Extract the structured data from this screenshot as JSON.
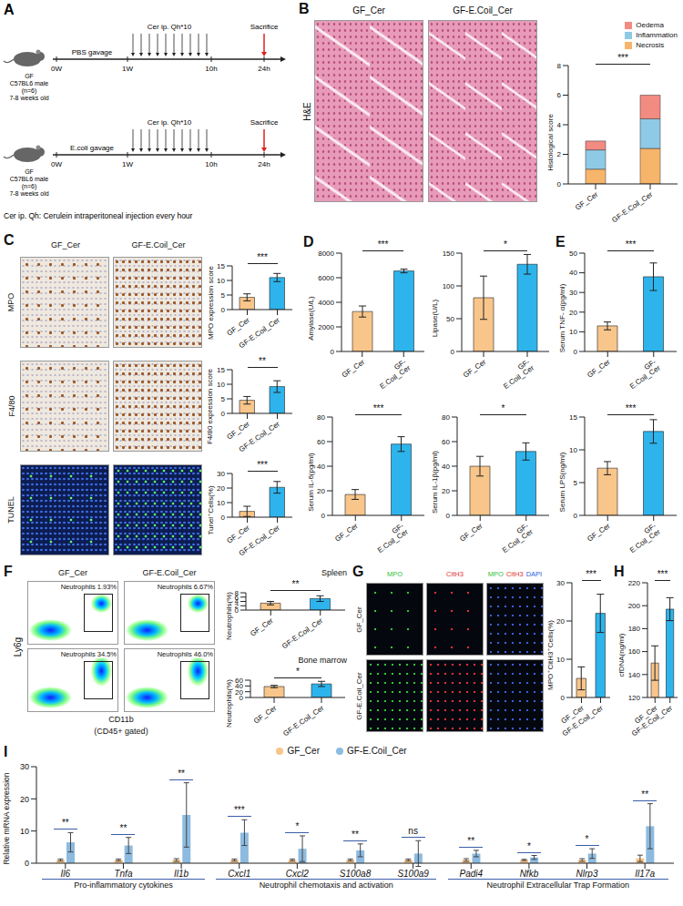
{
  "chart_data": [
    {
      "type": "bar",
      "panel": "B",
      "y_label": "Histological score",
      "categories": [
        "GF_Cer",
        "GF-E.Coil_Cer"
      ],
      "stacked": true,
      "legend": "top-right",
      "series": [
        {
          "name": "Oedema",
          "color": "#f28b82",
          "values": [
            0.6,
            1.6
          ]
        },
        {
          "name": "Inflammation",
          "color": "#8ecae6",
          "values": [
            1.3,
            2.0
          ]
        },
        {
          "name": "Necrosis",
          "color": "#f7b56b",
          "values": [
            1.0,
            2.4
          ]
        }
      ],
      "ylim": [
        0,
        8
      ],
      "yticks": [
        0,
        2,
        4,
        6,
        8
      ],
      "significance": "***"
    },
    {
      "type": "bar",
      "y_label": "MPO expression score",
      "categories": [
        "GF_Cer",
        "GF-E.Coil_Cer"
      ],
      "values": [
        4.2,
        11.0
      ],
      "errors": [
        1.2,
        1.4
      ],
      "colors": [
        "#f8c58a",
        "#2db4ec"
      ],
      "ylim": [
        0,
        15
      ],
      "yticks": [
        0,
        5,
        10,
        15
      ],
      "significance": "***"
    },
    {
      "type": "bar",
      "y_label": "F4/80 expression score",
      "categories": [
        "GF_Cer",
        "GF-E.Coil_Cer"
      ],
      "values": [
        4.5,
        9.2
      ],
      "errors": [
        1.3,
        2.0
      ],
      "colors": [
        "#f8c58a",
        "#2db4ec"
      ],
      "ylim": [
        0,
        15
      ],
      "yticks": [
        0,
        5,
        10,
        15
      ],
      "significance": "**"
    },
    {
      "type": "bar",
      "y_label": "Tunel⁺Cells(%)",
      "categories": [
        "GF_Cer",
        "GF-E.Coil_Cer"
      ],
      "values": [
        4.0,
        20.5
      ],
      "errors": [
        3.5,
        4.0
      ],
      "colors": [
        "#f8c58a",
        "#2db4ec"
      ],
      "ylim": [
        0,
        30
      ],
      "yticks": [
        0,
        10,
        20,
        30
      ],
      "significance": "***"
    },
    {
      "type": "bar",
      "panel": "D",
      "y_label": "Amylase(U/L)",
      "categories": [
        "GF_Cer",
        "GF- E.Coil_Cer"
      ],
      "values": [
        3250,
        6550
      ],
      "errors": [
        450,
        150
      ],
      "colors": [
        "#f8c58a",
        "#2db4ec"
      ],
      "ylim": [
        0,
        8000
      ],
      "yticks": [
        0,
        2000,
        4000,
        6000,
        8000
      ],
      "significance": "***"
    },
    {
      "type": "bar",
      "y_label": "Lipase(U/L)",
      "categories": [
        "GF_Cer",
        "GF- E.Coil_Cer"
      ],
      "values": [
        82,
        133
      ],
      "errors": [
        33,
        15
      ],
      "colors": [
        "#f8c58a",
        "#2db4ec"
      ],
      "ylim": [
        0,
        150
      ],
      "yticks": [
        0,
        50,
        100,
        150
      ],
      "significance": "*"
    },
    {
      "type": "bar",
      "panel": "E",
      "y_label": "Serum TNF- α(pg/ml)",
      "categories": [
        "GF_Cer",
        "GF- E.Coil_Cer"
      ],
      "values": [
        13,
        38
      ],
      "errors": [
        2,
        7
      ],
      "colors": [
        "#f8c58a",
        "#2db4ec"
      ],
      "ylim": [
        0,
        50
      ],
      "yticks": [
        0,
        10,
        20,
        30,
        40,
        50
      ],
      "significance": "***"
    },
    {
      "type": "bar",
      "y_label": "Serum IL-6(pg/ml)",
      "categories": [
        "GF_Cer",
        "GF- E.Coil_Cer"
      ],
      "values": [
        17,
        58
      ],
      "errors": [
        4,
        6
      ],
      "colors": [
        "#f8c58a",
        "#2db4ec"
      ],
      "ylim": [
        0,
        80
      ],
      "yticks": [
        0,
        20,
        40,
        60,
        80
      ],
      "significance": "***"
    },
    {
      "type": "bar",
      "y_label": "Serum IL-1β(pg/ml)",
      "categories": [
        "GF_Cer",
        "GF- E.Coil_Cer"
      ],
      "values": [
        40,
        52
      ],
      "errors": [
        8,
        7
      ],
      "colors": [
        "#f8c58a",
        "#2db4ec"
      ],
      "ylim": [
        0,
        80
      ],
      "yticks": [
        0,
        20,
        40,
        60,
        80
      ],
      "significance": "*"
    },
    {
      "type": "bar",
      "y_label": "Serum LPS(ng/ml)",
      "categories": [
        "GF_Cer",
        "GF- E.Coil_Cer"
      ],
      "values": [
        7.2,
        12.8
      ],
      "errors": [
        1.0,
        1.8
      ],
      "colors": [
        "#f8c58a",
        "#2db4ec"
      ],
      "ylim": [
        0,
        15
      ],
      "yticks": [
        0,
        5,
        10,
        15
      ],
      "significance": "***"
    },
    {
      "type": "bar",
      "title": "Spleen",
      "y_label": "Neutrophils(%)",
      "categories": [
        "GF_Cer",
        "GF-E.Coil_Cer"
      ],
      "values": [
        3.2,
        5.3
      ],
      "errors": [
        0.8,
        1.3
      ],
      "colors": [
        "#f8c58a",
        "#2db4ec"
      ],
      "ylim": [
        0,
        8
      ],
      "yticks": [
        0,
        2,
        4,
        6,
        8
      ],
      "significance": "**"
    },
    {
      "type": "bar",
      "title": "Bone marrow",
      "y_label": "Neutrophils(%)",
      "categories": [
        "GF_Cer",
        "GF-E.Coil_Cer"
      ],
      "values": [
        38,
        47
      ],
      "errors": [
        4,
        9
      ],
      "colors": [
        "#f8c58a",
        "#2db4ec"
      ],
      "ylim": [
        0,
        60
      ],
      "yticks": [
        0,
        20,
        40,
        60
      ],
      "significance": "*"
    },
    {
      "type": "bar",
      "y_label": "MPO⁺CitH3⁺Cells(%)",
      "categories": [
        "GF_Cer",
        "GF-E.Coil_Cer"
      ],
      "values": [
        5,
        22
      ],
      "errors": [
        3,
        5
      ],
      "colors": [
        "#f8c58a",
        "#2db4ec"
      ],
      "ylim": [
        0,
        30
      ],
      "yticks": [
        0,
        10,
        20,
        30
      ],
      "significance": "***"
    },
    {
      "type": "bar",
      "panel": "H",
      "y_label": "cfDNA(ng/ml)",
      "categories": [
        "GF_Cer",
        "GF-E.Coil_Cer"
      ],
      "values": [
        150,
        197
      ],
      "errors": [
        15,
        10
      ],
      "colors": [
        "#f8c58a",
        "#2db4ec"
      ],
      "ylim": [
        120,
        220
      ],
      "yticks": [
        120,
        140,
        160,
        180,
        200,
        220
      ],
      "significance": "***"
    },
    {
      "type": "bar",
      "panel": "I",
      "y_label": "Relative mRNA expression",
      "legend": "top",
      "categories": [
        "Il6",
        "Tnfa",
        "Il1b",
        "Cxcl1",
        "Cxcl2",
        "S100a8",
        "S100a9",
        "Padi4",
        "Nfkb",
        "Nlrp3",
        "Il17a"
      ],
      "series": [
        {
          "name": "GF_Cer",
          "color": "#f8c58a",
          "values": [
            1,
            1,
            1,
            1,
            1,
            1,
            1,
            1,
            1,
            1,
            1.5
          ],
          "errors": [
            0.3,
            0.3,
            0.4,
            0.3,
            0.3,
            0.3,
            0.3,
            0.4,
            0.2,
            0.4,
            1.0
          ]
        },
        {
          "name": "GF-E.Coil_Cer",
          "color": "#8dbbe0",
          "values": [
            6.5,
            5.5,
            15,
            9.5,
            4.5,
            4.0,
            3.0,
            3.0,
            1.8,
            3.0,
            11.5
          ],
          "errors": [
            3,
            2.5,
            10,
            4,
            4,
            2,
            4,
            1,
            0.6,
            1.5,
            7
          ]
        }
      ],
      "significance": [
        "**",
        "**",
        "**",
        "***",
        "*",
        "**",
        "ns",
        "**",
        "*",
        "*",
        "**"
      ],
      "groups": [
        {
          "label": "Pro-inflammatory cytokines",
          "members": [
            "Il6",
            "Tnfa",
            "Il1b"
          ]
        },
        {
          "label": "Neutrophil chemotaxis and activation",
          "members": [
            "Cxcl1",
            "Cxcl2",
            "S100a8",
            "S100a9"
          ]
        },
        {
          "label": "Neutrophil Extracellular Trap Formation",
          "members": [
            "Padi4",
            "Nfkb",
            "Nlrp3",
            "Il17a"
          ]
        }
      ],
      "ylim": [
        0,
        30
      ],
      "yticks": [
        0,
        10,
        20,
        30
      ]
    }
  ],
  "diagram": {
    "panel": "A",
    "mouse_label": [
      "GF",
      "C57BL6 male",
      "(n=6)",
      "7-8 weeks old"
    ],
    "gavages": [
      "PBS gavage",
      "E.coli gavage"
    ],
    "time_points": [
      "0W",
      "1W",
      "10h",
      "24h"
    ],
    "injection": "Cer ip. Qh*10",
    "end": "Sacrifice",
    "note": "Cer ip. Qh: Cerulein intraperitoneal injection every hour"
  },
  "images": {
    "B": {
      "panel": "B",
      "row_labels": [
        "H&E"
      ],
      "col_labels": [
        "GF_Cer",
        "GF-E.Coil_Cer"
      ]
    },
    "C": {
      "panel": "C",
      "row_labels": [
        "MPO",
        "F4/80",
        "TUNEL"
      ],
      "col_labels": [
        "GF_Cer",
        "GF-E.Coil_Cer"
      ]
    },
    "F": {
      "panel": "F",
      "col_labels": [
        "GF_Cer",
        "GF-E.Coil_Cer"
      ],
      "gates": [
        [
          "Neutrophils 1.93%",
          "Neutrophils 6.67%"
        ],
        [
          "Neutrophils 34.5%",
          "Neutrophils 46.0%"
        ]
      ],
      "y_label": "Ly6g",
      "x_label": "CD11b",
      "note": "(CD45+ gated)"
    },
    "G": {
      "panel": "G",
      "row_labels": [
        "GF_Cer",
        "GF-E.Coil_Cer"
      ],
      "col_labels": [
        [
          "MPO"
        ],
        [
          "CitH3"
        ],
        [
          "MPO",
          "CitH3",
          "DAPI"
        ]
      ],
      "label_colors": [
        "#33c233",
        "#e0302f",
        "#3060e0"
      ]
    }
  }
}
